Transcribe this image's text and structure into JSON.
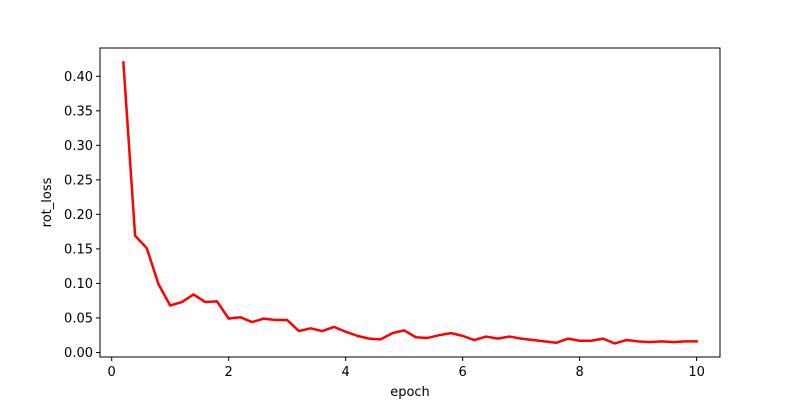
{
  "chart_data": {
    "type": "line",
    "title": "",
    "xlabel": "epoch",
    "ylabel": "rot_loss",
    "xlim": [
      -0.2,
      10.4
    ],
    "ylim": [
      -0.0066,
      0.441
    ],
    "xticks": [
      0,
      2,
      4,
      6,
      8,
      10
    ],
    "xtick_labels": [
      "0",
      "2",
      "4",
      "6",
      "8",
      "10"
    ],
    "yticks": [
      0.0,
      0.05,
      0.1,
      0.15,
      0.2,
      0.25,
      0.3,
      0.35,
      0.4
    ],
    "ytick_labels": [
      "0.00",
      "0.05",
      "0.10",
      "0.15",
      "0.20",
      "0.25",
      "0.30",
      "0.35",
      "0.40"
    ],
    "grid": false,
    "legend": "none",
    "series": [
      {
        "color": "#ff0000",
        "x": [
          0.2,
          0.4,
          0.6,
          0.8,
          1.0,
          1.2,
          1.4,
          1.6,
          1.8,
          2.0,
          2.2,
          2.4,
          2.6,
          2.8,
          3.0,
          3.2,
          3.4,
          3.6,
          3.8,
          4.0,
          4.2,
          4.4,
          4.6,
          4.8,
          5.0,
          5.2,
          5.4,
          5.6,
          5.8,
          6.0,
          6.2,
          6.4,
          6.6,
          6.8,
          7.0,
          7.2,
          7.4,
          7.6,
          7.8,
          8.0,
          8.2,
          8.4,
          8.6,
          8.8,
          9.0,
          9.2,
          9.4,
          9.6,
          9.8,
          10.0
        ],
        "values": [
          0.42,
          0.169,
          0.151,
          0.099,
          0.068,
          0.073,
          0.084,
          0.073,
          0.074,
          0.049,
          0.051,
          0.044,
          0.049,
          0.047,
          0.047,
          0.031,
          0.035,
          0.031,
          0.037,
          0.03,
          0.024,
          0.02,
          0.019,
          0.028,
          0.032,
          0.022,
          0.021,
          0.025,
          0.028,
          0.024,
          0.018,
          0.023,
          0.02,
          0.023,
          0.02,
          0.018,
          0.016,
          0.014,
          0.02,
          0.017,
          0.017,
          0.02,
          0.013,
          0.018,
          0.016,
          0.015,
          0.016,
          0.015,
          0.016,
          0.016
        ]
      }
    ]
  }
}
